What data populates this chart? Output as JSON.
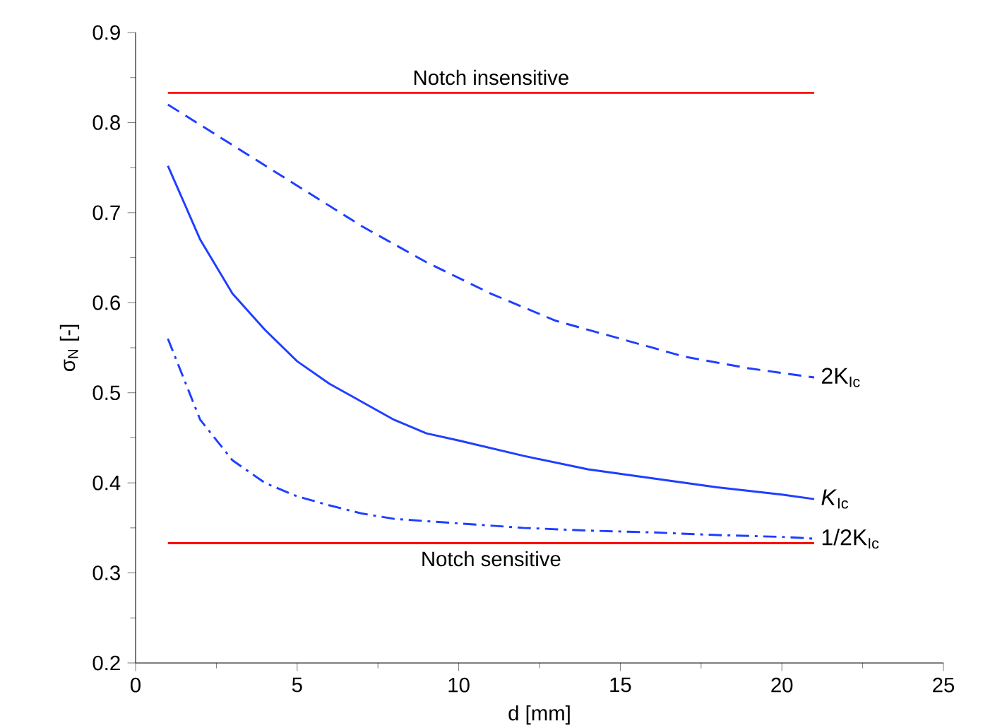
{
  "chart_data": {
    "type": "line",
    "xlabel": "d [mm]",
    "ylabel": "σ$_{N}$ [-]",
    "xlim": [
      0,
      25
    ],
    "ylim": [
      0.2,
      0.9
    ],
    "xticks": [
      0,
      5,
      10,
      15,
      20,
      25
    ],
    "yticks": [
      0.2,
      0.3,
      0.4,
      0.5,
      0.6,
      0.7,
      0.8,
      0.9
    ],
    "grid": false,
    "marker": "none",
    "series": [
      {
        "name": "2K$_{Ic}$",
        "color": "#1f3fff",
        "line_style": "dashed",
        "x": [
          1,
          3,
          5,
          7,
          9,
          11,
          13,
          15,
          17,
          19,
          21
        ],
        "values": [
          0.82,
          0.775,
          0.73,
          0.685,
          0.645,
          0.61,
          0.58,
          0.56,
          0.54,
          0.527,
          0.517
        ]
      },
      {
        "name": "*K*$_{Ic}$",
        "color": "#1f3fff",
        "line_style": "solid",
        "x": [
          1,
          2,
          3,
          4,
          5,
          6,
          7,
          8,
          9,
          10,
          12,
          14,
          16,
          18,
          20,
          21
        ],
        "values": [
          0.752,
          0.67,
          0.61,
          0.57,
          0.535,
          0.51,
          0.49,
          0.47,
          0.455,
          0.447,
          0.43,
          0.415,
          0.405,
          0.395,
          0.387,
          0.382
        ]
      },
      {
        "name": "1/2K$_{Ic}$",
        "color": "#1f3fff",
        "line_style": "dashdot",
        "x": [
          1,
          2,
          3,
          4,
          5,
          6,
          7,
          8,
          10,
          12,
          14,
          16,
          18,
          20,
          21
        ],
        "values": [
          0.56,
          0.47,
          0.425,
          0.4,
          0.385,
          0.375,
          0.366,
          0.36,
          0.355,
          0.35,
          0.347,
          0.345,
          0.342,
          0.34,
          0.338
        ]
      },
      {
        "color": "#ff0000",
        "line_style": "solid",
        "x": [
          1,
          21
        ],
        "values": [
          0.833,
          0.833
        ]
      },
      {
        "color": "#ff0000",
        "line_style": "solid",
        "x": [
          1,
          21
        ],
        "values": [
          0.333,
          0.333
        ]
      }
    ],
    "annotations": [
      {
        "text": "Notch insensitive",
        "x": 11,
        "y": 0.833
      },
      {
        "text": "Notch sensitive",
        "x": 11,
        "y": 0.333
      }
    ]
  }
}
